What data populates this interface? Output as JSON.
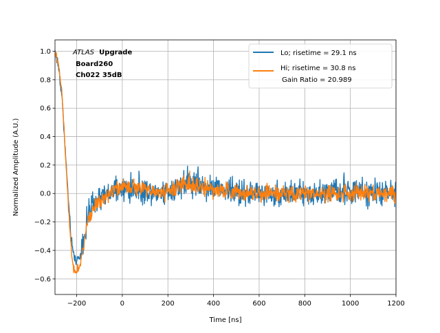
{
  "chart_data": {
    "type": "line",
    "title": "",
    "xlabel": "Time [ns]",
    "ylabel": "Normalized Amplitude (A.U.)",
    "xlim": [
      -295,
      1200
    ],
    "ylim": [
      -0.71,
      1.08
    ],
    "grid": true,
    "legend_position": "top-right",
    "xticks": [
      -200,
      0,
      200,
      400,
      600,
      800,
      1000,
      1200
    ],
    "yticks": [
      -0.6,
      -0.4,
      -0.2,
      0.0,
      0.2,
      0.4,
      0.6,
      0.8,
      1.0
    ],
    "xtick_labels": [
      "−200",
      "0",
      "200",
      "400",
      "600",
      "800",
      "1000",
      "1200"
    ],
    "ytick_labels": [
      "−0.6",
      "−0.4",
      "−0.2",
      "0.0",
      "0.2",
      "0.4",
      "0.6",
      "0.8",
      "1.0"
    ],
    "annotation": {
      "italic": "ATLAS",
      "bold": "Upgrade",
      "line2": "Board260",
      "line3": "Ch022 35dB"
    },
    "series": [
      {
        "name": "Lo; risetime = 29.1 ns",
        "color": "#1f77b4",
        "noise": 0.055,
        "shape": [
          [
            -295,
            1.0
          ],
          [
            -280,
            0.9
          ],
          [
            -265,
            0.7
          ],
          [
            -250,
            0.3
          ],
          [
            -240,
            0.05
          ],
          [
            -230,
            -0.2
          ],
          [
            -220,
            -0.38
          ],
          [
            -210,
            -0.45
          ],
          [
            -200,
            -0.47
          ],
          [
            -185,
            -0.44
          ],
          [
            -170,
            -0.32
          ],
          [
            -150,
            -0.15
          ],
          [
            -120,
            -0.07
          ],
          [
            -80,
            -0.02
          ],
          [
            -40,
            0.01
          ],
          [
            0,
            0.03
          ],
          [
            60,
            0.03
          ],
          [
            120,
            0.02
          ],
          [
            180,
            0.01
          ],
          [
            230,
            0.04
          ],
          [
            270,
            0.08
          ],
          [
            320,
            0.08
          ],
          [
            370,
            0.05
          ],
          [
            420,
            0.03
          ],
          [
            500,
            0.01
          ],
          [
            600,
            0.0
          ],
          [
            800,
            0.0
          ],
          [
            1000,
            0.01
          ],
          [
            1200,
            0.0
          ]
        ]
      },
      {
        "name": "Hi; risetime = 30.8 ns",
        "sublabel": "Gain Ratio = 20.989",
        "color": "#ff7f0e",
        "noise": 0.035,
        "shape": [
          [
            -295,
            1.0
          ],
          [
            -280,
            0.92
          ],
          [
            -265,
            0.72
          ],
          [
            -250,
            0.3
          ],
          [
            -240,
            0.02
          ],
          [
            -230,
            -0.25
          ],
          [
            -220,
            -0.45
          ],
          [
            -210,
            -0.54
          ],
          [
            -200,
            -0.55
          ],
          [
            -185,
            -0.5
          ],
          [
            -170,
            -0.36
          ],
          [
            -150,
            -0.18
          ],
          [
            -120,
            -0.08
          ],
          [
            -80,
            -0.02
          ],
          [
            -40,
            0.02
          ],
          [
            0,
            0.04
          ],
          [
            60,
            0.04
          ],
          [
            120,
            0.02
          ],
          [
            180,
            0.01
          ],
          [
            230,
            0.04
          ],
          [
            270,
            0.07
          ],
          [
            320,
            0.06
          ],
          [
            370,
            0.04
          ],
          [
            420,
            0.02
          ],
          [
            500,
            0.01
          ],
          [
            600,
            0.0
          ],
          [
            800,
            0.0
          ],
          [
            1000,
            0.0
          ],
          [
            1200,
            0.0
          ]
        ]
      }
    ]
  }
}
